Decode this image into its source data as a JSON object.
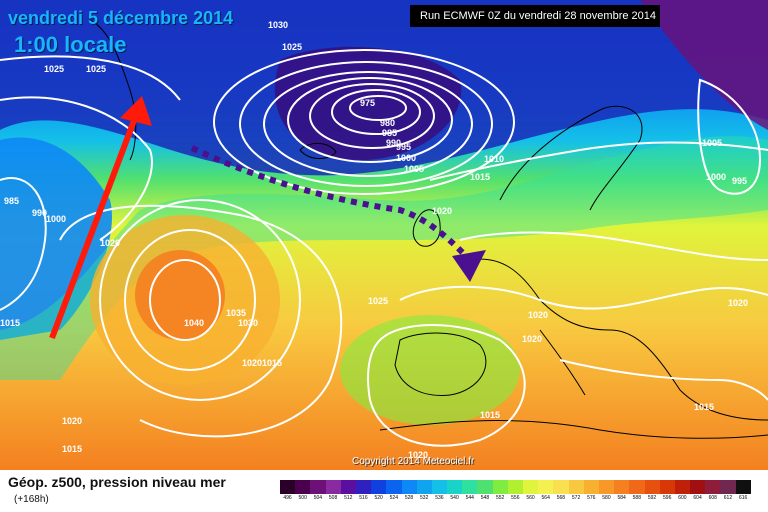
{
  "header": {
    "date": "vendredi 5 décembre 2014",
    "time": "1:00 locale",
    "run": "Run ECMWF 0Z du vendredi 28 novembre 2014"
  },
  "copyright": "Copyright 2014 Meteociel.fr",
  "footer": {
    "title": "Géop. z500, pression niveau mer",
    "lead_time": "(+168h)"
  },
  "scale": {
    "labels": [
      "496",
      "500",
      "504",
      "508",
      "512",
      "516",
      "520",
      "524",
      "528",
      "532",
      "536",
      "540",
      "544",
      "548",
      "552",
      "556",
      "560",
      "564",
      "568",
      "572",
      "576",
      "580",
      "584",
      "588",
      "592",
      "596",
      "600",
      "604",
      "608",
      "612",
      "616"
    ],
    "colors": [
      "#2a0028",
      "#4b004f",
      "#6d1078",
      "#8a2aa0",
      "#5a0fa0",
      "#3020c0",
      "#1040e0",
      "#0a64f0",
      "#0d88f6",
      "#10a4f0",
      "#14c0e8",
      "#18d4c8",
      "#30e0a0",
      "#50e070",
      "#80ec40",
      "#b0f030",
      "#e0f43c",
      "#f4f050",
      "#f8e050",
      "#f8c840",
      "#f8b030",
      "#f89828",
      "#f48020",
      "#f06818",
      "#e85010",
      "#d83808",
      "#c02008",
      "#a01010",
      "#901c3c",
      "#702850",
      "#101010"
    ]
  },
  "isobar_labels": [
    "975",
    "980",
    "985",
    "990",
    "995",
    "1000",
    "1005",
    "1010",
    "1015",
    "1020",
    "1025",
    "1030",
    "1035",
    "1040"
  ],
  "map_labels": {
    "low_center": "975",
    "high_center": "1040",
    "ring_980": "980",
    "ring_985": "985",
    "ring_990": "990",
    "ring_995": "995",
    "ring_1000": "1000",
    "ring_1005": "1005",
    "ring_1010": "1010",
    "ring_1015": "1015",
    "ring_1020": "1020",
    "ring_1025": "1025",
    "ring_1030": "1030",
    "ring_1035": "1035"
  }
}
